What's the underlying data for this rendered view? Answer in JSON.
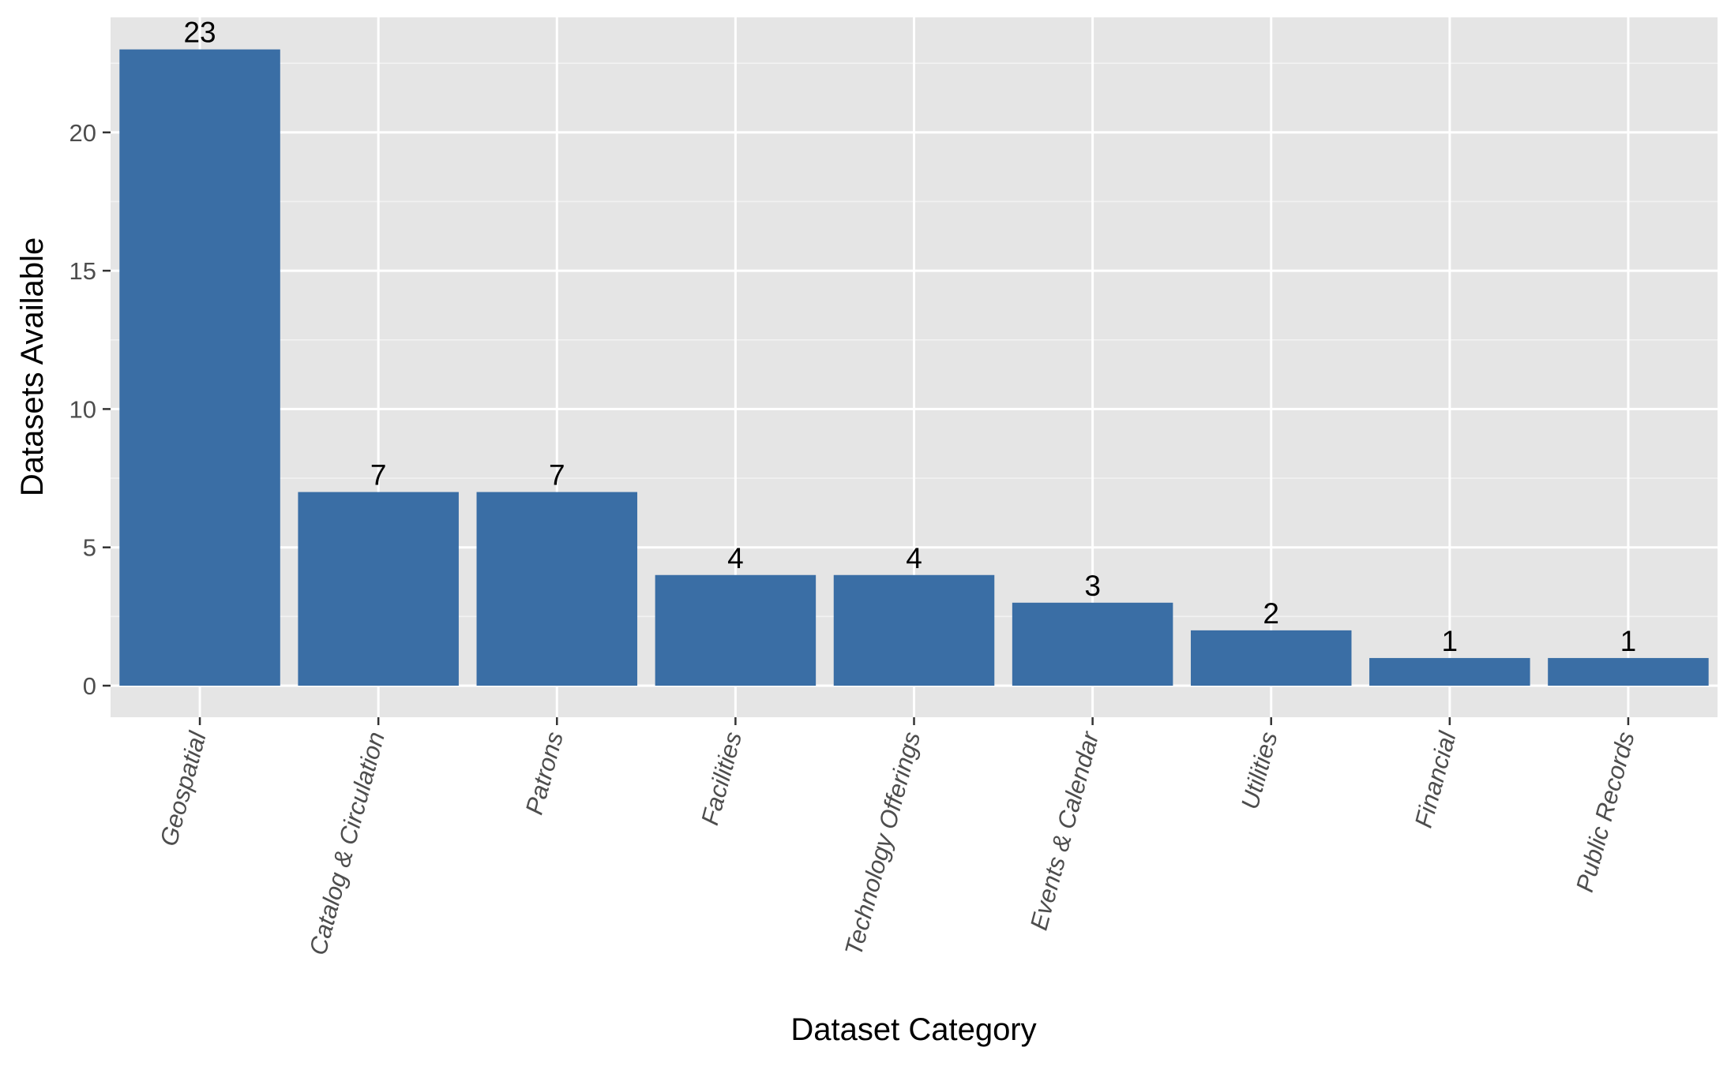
{
  "chart_data": {
    "type": "bar",
    "categories": [
      "Geospatial",
      "Catalog & Circulation",
      "Patrons",
      "Facilities",
      "Technology Offerings",
      "Events & Calendar",
      "Utilities",
      "Financial",
      "Public Records"
    ],
    "values": [
      23,
      7,
      7,
      4,
      4,
      3,
      2,
      1,
      1
    ],
    "data_labels": [
      "23",
      "7",
      "7",
      "4",
      "4",
      "3",
      "2",
      "1",
      "1"
    ],
    "xlabel": "Dataset Category",
    "ylabel": "Datasets Available",
    "ylim": [
      -1.15,
      24.15
    ],
    "y_ticks": [
      0,
      5,
      10,
      15,
      20
    ],
    "y_tick_labels": [
      "0",
      "5",
      "10",
      "15",
      "20"
    ],
    "x_tick_rotation_deg": 75,
    "grid": true,
    "legend": "none",
    "colors": {
      "bar": "#3a6ea5",
      "panel_background": "#e5e5e5",
      "grid_major": "#ffffff",
      "grid_minor": "#f2f2f2",
      "tick_label": "#4d4d4d",
      "tick_mark": "#333333"
    }
  }
}
